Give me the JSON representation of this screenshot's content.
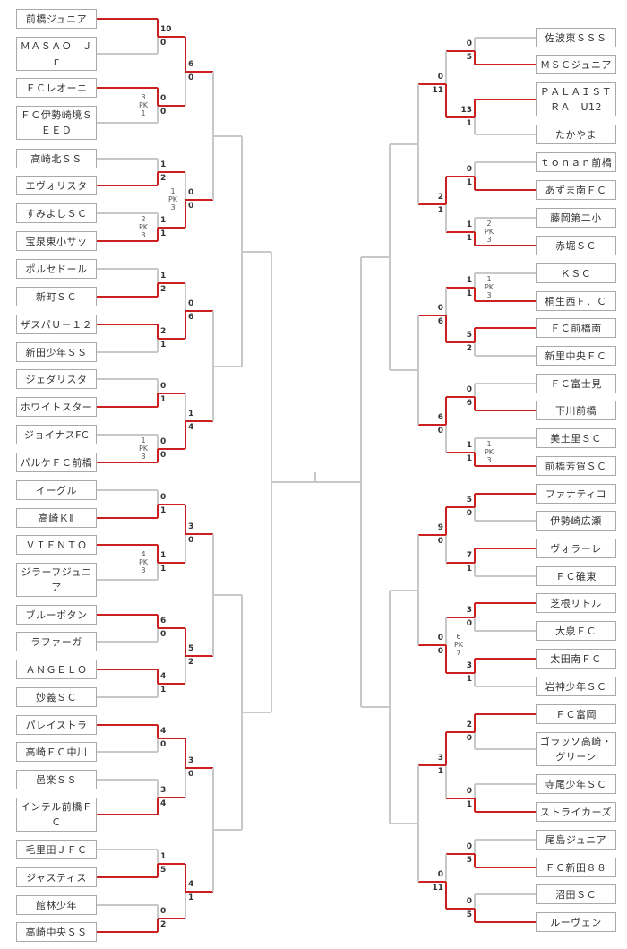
{
  "colors": {
    "winner_line": "#cc1f1f",
    "line": "#c8c8c8",
    "box_border": "#a9a9a9"
  },
  "left": {
    "teams": [
      "前橋ジュニア",
      "ＭＡＳＡＯ　Ｊｒ",
      "ＦＣレオーニ",
      "ＦＣ伊勢崎境ＳＥＥＤ",
      "高崎北ＳＳ",
      "エヴォリスタ",
      "すみよしＳＣ",
      "宝泉東小サッ",
      "ポルセドール",
      "新町ＳＣ",
      "ザスパＵ－１２",
      "新田少年ＳＳ",
      "ジェダリスタ",
      "ホワイトスター",
      "ジョイナスFC",
      "パルケＦＣ前橋",
      "イーグル",
      "高崎ＫⅡ",
      "ＶＩＥＮＴＯ",
      "ジラーフジュニア",
      "ブルーボタン",
      "ラファーガ",
      "ＡＮＧＥＬＯ",
      "妙義ＳＣ",
      "パレイストラ",
      "高崎ＦＣ中川",
      "邑楽ＳＳ",
      "インテル前橋ＦＣ",
      "毛里田ＪＦＣ",
      "ジャスティス",
      "館林少年",
      "高崎中央ＳＳ"
    ],
    "rounds": [
      [
        {
          "s": [
            "10",
            "0"
          ]
        },
        {
          "s": [
            "0",
            "0"
          ],
          "pk": [
            "3",
            "1"
          ]
        },
        {
          "s": [
            "1",
            "2"
          ]
        },
        {
          "s": [
            "1",
            "1"
          ],
          "pk": [
            "2",
            "3"
          ]
        },
        {
          "s": [
            "1",
            "2"
          ]
        },
        {
          "s": [
            "2",
            "1"
          ]
        },
        {
          "s": [
            "0",
            "1"
          ]
        },
        {
          "s": [
            "0",
            "0"
          ],
          "pk": [
            "1",
            "3"
          ]
        },
        {
          "s": [
            "0",
            "1"
          ]
        },
        {
          "s": [
            "1",
            "1"
          ],
          "pk": [
            "4",
            "3"
          ]
        },
        {
          "s": [
            "6",
            "0"
          ]
        },
        {
          "s": [
            "4",
            "1"
          ]
        },
        {
          "s": [
            "4",
            "0"
          ]
        },
        {
          "s": [
            "3",
            "4"
          ]
        },
        {
          "s": [
            "1",
            "5"
          ]
        },
        {
          "s": [
            "0",
            "2"
          ]
        }
      ],
      [
        {
          "s": [
            "6",
            "0"
          ]
        },
        {
          "s": [
            "0",
            "0"
          ],
          "pk": [
            "1",
            "3"
          ]
        },
        {
          "s": [
            "0",
            "6"
          ]
        },
        {
          "s": [
            "1",
            "4"
          ]
        },
        {
          "s": [
            "3",
            "0"
          ]
        },
        {
          "s": [
            "5",
            "2"
          ]
        },
        {
          "s": [
            "3",
            "0"
          ]
        },
        {
          "s": [
            "4",
            "1"
          ]
        }
      ]
    ]
  },
  "right": {
    "teams": [
      "佐波東ＳＳＳ",
      "ＭＳＣジュニア",
      "ＰＡＬＡＩＳＴＲＡ　U12",
      "たかやま",
      "ｔｏｎａｎ前橋",
      "あずま南ＦＣ",
      "藤岡第二小",
      "赤堀ＳＣ",
      "ＫＳＣ",
      "桐生西Ｆ．Ｃ",
      "ＦＣ前橋南",
      "新里中央ＦＣ",
      "ＦＣ富士見",
      "下川前橋",
      "美土里ＳＣ",
      "前橋芳賀ＳＣ",
      "ファナティコ",
      "伊勢崎広瀬",
      "ヴォラーレ",
      "ＦＣ碓東",
      "芝根リトル",
      "大泉ＦＣ",
      "太田南ＦＣ",
      "岩神少年ＳＣ",
      "ＦＣ富岡",
      "ゴラッソ高崎・グリーン",
      "寺尾少年ＳＣ",
      "ストライカーズ",
      "尾島ジュニア",
      "ＦＣ新田８８",
      "沼田ＳＣ",
      "ルーヴェン"
    ],
    "rounds": [
      [
        {
          "s": [
            "0",
            "5"
          ]
        },
        {
          "s": [
            "13",
            "1"
          ]
        },
        {
          "s": [
            "0",
            "1"
          ]
        },
        {
          "s": [
            "1",
            "1"
          ],
          "pk": [
            "2",
            "3"
          ]
        },
        {
          "s": [
            "1",
            "1"
          ],
          "pk": [
            "1",
            "3"
          ]
        },
        {
          "s": [
            "5",
            "2"
          ]
        },
        {
          "s": [
            "0",
            "6"
          ]
        },
        {
          "s": [
            "1",
            "1"
          ],
          "pk": [
            "1",
            "3"
          ]
        },
        {
          "s": [
            "5",
            "0"
          ]
        },
        {
          "s": [
            "7",
            "1"
          ]
        },
        {
          "s": [
            "3",
            "0"
          ]
        },
        {
          "s": [
            "3",
            "1"
          ]
        },
        {
          "s": [
            "2",
            "0"
          ]
        },
        {
          "s": [
            "0",
            "1"
          ]
        },
        {
          "s": [
            "0",
            "5"
          ]
        },
        {
          "s": [
            "0",
            "5"
          ]
        }
      ],
      [
        {
          "s": [
            "0",
            "11"
          ]
        },
        {
          "s": [
            "2",
            "1"
          ]
        },
        {
          "s": [
            "0",
            "6"
          ]
        },
        {
          "s": [
            "6",
            "0"
          ]
        },
        {
          "s": [
            "9",
            "0"
          ]
        },
        {
          "s": [
            "0",
            "0"
          ],
          "pk": [
            "6",
            "7"
          ]
        },
        {
          "s": [
            "3",
            "1"
          ]
        },
        {
          "s": [
            "0",
            "11"
          ]
        }
      ]
    ]
  },
  "pk_label": "PK"
}
